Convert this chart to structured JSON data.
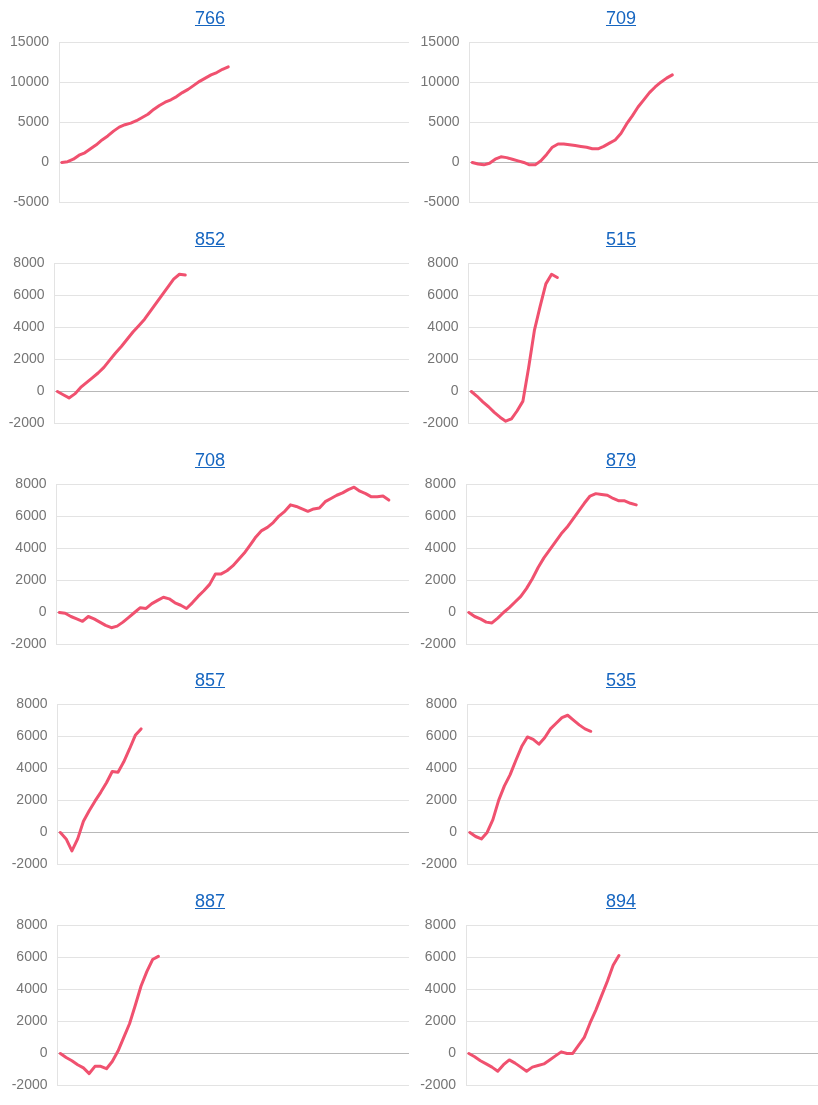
{
  "chart_data": [
    {
      "type": "line",
      "title": "766",
      "categories": [
        null,
        null,
        null,
        null,
        null,
        null,
        null,
        null,
        null,
        null,
        null,
        null,
        null,
        null,
        null,
        null,
        null,
        null,
        null,
        null,
        null,
        null,
        null,
        null,
        null,
        null,
        null,
        null,
        null,
        null,
        null,
        null,
        null,
        null,
        null,
        null,
        null,
        null,
        null,
        null,
        null,
        null,
        null,
        null,
        null,
        null,
        null,
        null,
        null,
        null,
        null,
        null,
        null,
        null,
        null,
        null,
        null,
        null,
        null,
        null,
        null
      ],
      "values": [
        0,
        100,
        400,
        900,
        1200,
        1700,
        2200,
        2800,
        3300,
        3900,
        4400,
        4700,
        4900,
        5200,
        5600,
        6000,
        6600,
        7100,
        7500,
        7800,
        8200,
        8700,
        9100,
        9600,
        10100,
        10500,
        10900,
        11200,
        11600,
        11900,
        null,
        null,
        null,
        null,
        null,
        null,
        null,
        null,
        null,
        null,
        null,
        null,
        null,
        null,
        null,
        null,
        null,
        null,
        null,
        null,
        null,
        null,
        null,
        null,
        null,
        null,
        null,
        null,
        null,
        null,
        null
      ],
      "color": "#f0516f",
      "ylim": [
        -5000,
        15000
      ],
      "yticks": [
        -5000,
        0,
        5000,
        10000,
        15000
      ],
      "grid": "y",
      "tick_labels": "y"
    },
    {
      "type": "line",
      "title": "709",
      "categories": [
        null,
        null,
        null,
        null,
        null,
        null,
        null,
        null,
        null,
        null,
        null,
        null,
        null,
        null,
        null,
        null,
        null,
        null,
        null,
        null,
        null,
        null,
        null,
        null,
        null,
        null,
        null,
        null,
        null,
        null,
        null,
        null,
        null,
        null,
        null,
        null,
        null,
        null,
        null,
        null,
        null,
        null,
        null,
        null,
        null,
        null,
        null,
        null,
        null,
        null,
        null,
        null,
        null,
        null,
        null,
        null,
        null,
        null,
        null,
        null,
        null
      ],
      "values": [
        0,
        -200,
        -300,
        -100,
        400,
        700,
        600,
        400,
        200,
        0,
        -300,
        -300,
        200,
        1000,
        1900,
        2300,
        2300,
        2200,
        2100,
        2000,
        1900,
        1700,
        1700,
        2000,
        2400,
        2800,
        3600,
        4800,
        5800,
        6900,
        7800,
        8700,
        9400,
        10000,
        10500,
        10900,
        null,
        null,
        null,
        null,
        null,
        null,
        null,
        null,
        null,
        null,
        null,
        null,
        null,
        null,
        null,
        null,
        null,
        null,
        null,
        null,
        null,
        null,
        null,
        null,
        null
      ],
      "color": "#f0516f",
      "ylim": [
        -5000,
        15000
      ],
      "yticks": [
        -5000,
        0,
        5000,
        10000,
        15000
      ],
      "grid": "y",
      "tick_labels": "y"
    },
    {
      "type": "line",
      "title": "852",
      "categories": [
        null,
        null,
        null,
        null,
        null,
        null,
        null,
        null,
        null,
        null,
        null,
        null,
        null,
        null,
        null,
        null,
        null,
        null,
        null,
        null,
        null,
        null,
        null,
        null,
        null,
        null,
        null,
        null,
        null,
        null,
        null,
        null,
        null,
        null,
        null,
        null,
        null,
        null,
        null,
        null,
        null,
        null,
        null,
        null,
        null,
        null,
        null,
        null,
        null,
        null,
        null,
        null,
        null,
        null,
        null,
        null,
        null,
        null,
        null,
        null,
        null
      ],
      "values": [
        0,
        -200,
        -400,
        -150,
        250,
        550,
        850,
        1150,
        1500,
        1950,
        2400,
        2800,
        3250,
        3700,
        4100,
        4500,
        5000,
        5500,
        6000,
        6500,
        7000,
        7300,
        7250,
        null,
        null,
        null,
        null,
        null,
        null,
        null,
        null,
        null,
        null,
        null,
        null,
        null,
        null,
        null,
        null,
        null,
        null,
        null,
        null,
        null,
        null,
        null,
        null,
        null,
        null,
        null,
        null,
        null,
        null,
        null,
        null,
        null,
        null,
        null,
        null,
        null,
        null
      ],
      "color": "#f0516f",
      "ylim": [
        -2000,
        8000
      ],
      "yticks": [
        -2000,
        0,
        2000,
        4000,
        6000,
        8000
      ],
      "grid": "y",
      "tick_labels": "y"
    },
    {
      "type": "line",
      "title": "515",
      "categories": [
        null,
        null,
        null,
        null,
        null,
        null,
        null,
        null,
        null,
        null,
        null,
        null,
        null,
        null,
        null,
        null,
        null,
        null,
        null,
        null,
        null,
        null,
        null,
        null,
        null,
        null,
        null,
        null,
        null,
        null,
        null,
        null,
        null,
        null,
        null,
        null,
        null,
        null,
        null,
        null,
        null,
        null,
        null,
        null,
        null,
        null,
        null,
        null,
        null,
        null,
        null,
        null,
        null,
        null,
        null,
        null,
        null,
        null,
        null,
        null,
        null
      ],
      "values": [
        0,
        -300,
        -650,
        -950,
        -1300,
        -1600,
        -1850,
        -1700,
        -1200,
        -600,
        1500,
        3800,
        5300,
        6700,
        7300,
        7100,
        null,
        null,
        null,
        null,
        null,
        null,
        null,
        null,
        null,
        null,
        null,
        null,
        null,
        null,
        null,
        null,
        null,
        null,
        null,
        null,
        null,
        null,
        null,
        null,
        null,
        null,
        null,
        null,
        null,
        null,
        null,
        null,
        null,
        null,
        null,
        null,
        null,
        null,
        null,
        null,
        null,
        null,
        null,
        null,
        null
      ],
      "color": "#f0516f",
      "ylim": [
        -2000,
        8000
      ],
      "yticks": [
        -2000,
        0,
        2000,
        4000,
        6000,
        8000
      ],
      "grid": "y",
      "tick_labels": "y"
    },
    {
      "type": "line",
      "title": "708",
      "categories": [
        null,
        null,
        null,
        null,
        null,
        null,
        null,
        null,
        null,
        null,
        null,
        null,
        null,
        null,
        null,
        null,
        null,
        null,
        null,
        null,
        null,
        null,
        null,
        null,
        null,
        null,
        null,
        null,
        null,
        null,
        null,
        null,
        null,
        null,
        null,
        null,
        null,
        null,
        null,
        null,
        null,
        null,
        null,
        null,
        null,
        null,
        null,
        null,
        null,
        null,
        null,
        null,
        null,
        null,
        null,
        null,
        null,
        null,
        null,
        null,
        null
      ],
      "values": [
        0,
        -50,
        -250,
        -400,
        -550,
        -250,
        -400,
        -600,
        -800,
        -950,
        -850,
        -600,
        -300,
        0,
        300,
        250,
        550,
        750,
        950,
        850,
        600,
        450,
        250,
        600,
        1000,
        1350,
        1750,
        2400,
        2400,
        2600,
        2900,
        3300,
        3700,
        4200,
        4700,
        5100,
        5300,
        5600,
        6000,
        6300,
        6700,
        6600,
        6450,
        6300,
        6450,
        6500,
        6900,
        7100,
        7300,
        7450,
        7650,
        7800,
        7550,
        7400,
        7200,
        7200,
        7250,
        7000,
        null,
        null,
        null
      ],
      "color": "#f0516f",
      "ylim": [
        -2000,
        8000
      ],
      "yticks": [
        -2000,
        0,
        2000,
        4000,
        6000,
        8000
      ],
      "grid": "y",
      "tick_labels": "y"
    },
    {
      "type": "line",
      "title": "879",
      "categories": [
        null,
        null,
        null,
        null,
        null,
        null,
        null,
        null,
        null,
        null,
        null,
        null,
        null,
        null,
        null,
        null,
        null,
        null,
        null,
        null,
        null,
        null,
        null,
        null,
        null,
        null,
        null,
        null,
        null,
        null,
        null,
        null,
        null,
        null,
        null,
        null,
        null,
        null,
        null,
        null,
        null,
        null,
        null,
        null,
        null,
        null,
        null,
        null,
        null,
        null,
        null,
        null,
        null,
        null,
        null,
        null,
        null,
        null,
        null,
        null,
        null
      ],
      "values": [
        0,
        -250,
        -400,
        -600,
        -650,
        -350,
        0,
        300,
        650,
        1000,
        1500,
        2100,
        2800,
        3400,
        3900,
        4400,
        4900,
        5300,
        5800,
        6300,
        6800,
        7250,
        7400,
        7350,
        7300,
        7100,
        6950,
        6950,
        6800,
        6700,
        null,
        null,
        null,
        null,
        null,
        null,
        null,
        null,
        null,
        null,
        null,
        null,
        null,
        null,
        null,
        null,
        null,
        null,
        null,
        null,
        null,
        null,
        null,
        null,
        null,
        null,
        null,
        null,
        null,
        null,
        null
      ],
      "color": "#f0516f",
      "ylim": [
        -2000,
        8000
      ],
      "yticks": [
        -2000,
        0,
        2000,
        4000,
        6000,
        8000
      ],
      "grid": "y",
      "tick_labels": "y"
    },
    {
      "type": "line",
      "title": "857",
      "categories": [
        null,
        null,
        null,
        null,
        null,
        null,
        null,
        null,
        null,
        null,
        null,
        null,
        null,
        null,
        null,
        null,
        null,
        null,
        null,
        null,
        null,
        null,
        null,
        null,
        null,
        null,
        null,
        null,
        null,
        null,
        null,
        null,
        null,
        null,
        null,
        null,
        null,
        null,
        null,
        null,
        null,
        null,
        null,
        null,
        null,
        null,
        null,
        null,
        null,
        null,
        null,
        null,
        null,
        null,
        null,
        null,
        null,
        null,
        null,
        null,
        null
      ],
      "values": [
        0,
        -400,
        -1150,
        -400,
        700,
        1350,
        1950,
        2500,
        3100,
        3800,
        3750,
        4400,
        5200,
        6050,
        6450,
        null,
        null,
        null,
        null,
        null,
        null,
        null,
        null,
        null,
        null,
        null,
        null,
        null,
        null,
        null,
        null,
        null,
        null,
        null,
        null,
        null,
        null,
        null,
        null,
        null,
        null,
        null,
        null,
        null,
        null,
        null,
        null,
        null,
        null,
        null,
        null,
        null,
        null,
        null,
        null,
        null,
        null,
        null,
        null,
        null,
        null
      ],
      "color": "#f0516f",
      "ylim": [
        -2000,
        8000
      ],
      "yticks": [
        -2000,
        0,
        2000,
        4000,
        6000,
        8000
      ],
      "grid": "y",
      "tick_labels": "y"
    },
    {
      "type": "line",
      "title": "535",
      "categories": [
        null,
        null,
        null,
        null,
        null,
        null,
        null,
        null,
        null,
        null,
        null,
        null,
        null,
        null,
        null,
        null,
        null,
        null,
        null,
        null,
        null,
        null,
        null,
        null,
        null,
        null,
        null,
        null,
        null,
        null,
        null,
        null,
        null,
        null,
        null,
        null,
        null,
        null,
        null,
        null,
        null,
        null,
        null,
        null,
        null,
        null,
        null,
        null,
        null,
        null,
        null,
        null,
        null,
        null,
        null,
        null,
        null,
        null,
        null,
        null,
        null
      ],
      "values": [
        0,
        -250,
        -400,
        0,
        800,
        2000,
        2900,
        3600,
        4500,
        5350,
        5950,
        5800,
        5500,
        5900,
        6450,
        6800,
        7150,
        7300,
        7000,
        6700,
        6450,
        6300,
        null,
        null,
        null,
        null,
        null,
        null,
        null,
        null,
        null,
        null,
        null,
        null,
        null,
        null,
        null,
        null,
        null,
        null,
        null,
        null,
        null,
        null,
        null,
        null,
        null,
        null,
        null,
        null,
        null,
        null,
        null,
        null,
        null,
        null,
        null,
        null,
        null,
        null,
        null
      ],
      "color": "#f0516f",
      "ylim": [
        -2000,
        8000
      ],
      "yticks": [
        -2000,
        0,
        2000,
        4000,
        6000,
        8000
      ],
      "grid": "y",
      "tick_labels": "y"
    },
    {
      "type": "line",
      "title": "887",
      "categories": [
        null,
        null,
        null,
        null,
        null,
        null,
        null,
        null,
        null,
        null,
        null,
        null,
        null,
        null,
        null,
        null,
        null,
        null,
        null,
        null,
        null,
        null,
        null,
        null,
        null,
        null,
        null,
        null,
        null,
        null,
        null,
        null,
        null,
        null,
        null,
        null,
        null,
        null,
        null,
        null,
        null,
        null,
        null,
        null,
        null,
        null,
        null,
        null,
        null,
        null,
        null,
        null,
        null,
        null,
        null,
        null,
        null,
        null,
        null,
        null,
        null
      ],
      "values": [
        0,
        -250,
        -450,
        -700,
        -900,
        -1250,
        -800,
        -800,
        -950,
        -500,
        150,
        1000,
        1850,
        3000,
        4200,
        5100,
        5850,
        6050,
        null,
        null,
        null,
        null,
        null,
        null,
        null,
        null,
        null,
        null,
        null,
        null,
        null,
        null,
        null,
        null,
        null,
        null,
        null,
        null,
        null,
        null,
        null,
        null,
        null,
        null,
        null,
        null,
        null,
        null,
        null,
        null,
        null,
        null,
        null,
        null,
        null,
        null,
        null,
        null,
        null,
        null,
        null
      ],
      "color": "#f0516f",
      "ylim": [
        -2000,
        8000
      ],
      "yticks": [
        -2000,
        0,
        2000,
        4000,
        6000,
        8000
      ],
      "grid": "y",
      "tick_labels": "y"
    },
    {
      "type": "line",
      "title": "894",
      "categories": [
        null,
        null,
        null,
        null,
        null,
        null,
        null,
        null,
        null,
        null,
        null,
        null,
        null,
        null,
        null,
        null,
        null,
        null,
        null,
        null,
        null,
        null,
        null,
        null,
        null,
        null,
        null,
        null,
        null,
        null,
        null,
        null,
        null,
        null,
        null,
        null,
        null,
        null,
        null,
        null,
        null,
        null,
        null,
        null,
        null,
        null,
        null,
        null,
        null,
        null,
        null,
        null,
        null,
        null,
        null,
        null,
        null,
        null,
        null,
        null,
        null
      ],
      "values": [
        0,
        -200,
        -450,
        -650,
        -850,
        -1100,
        -700,
        -400,
        -600,
        -850,
        -1100,
        -850,
        -750,
        -650,
        -400,
        -150,
        100,
        0,
        0,
        500,
        1000,
        1900,
        2700,
        3600,
        4500,
        5500,
        6100,
        null,
        null,
        null,
        null,
        null,
        null,
        null,
        null,
        null,
        null,
        null,
        null,
        null,
        null,
        null,
        null,
        null,
        null,
        null,
        null,
        null,
        null,
        null,
        null,
        null,
        null,
        null,
        null,
        null,
        null,
        null,
        null,
        null,
        null
      ],
      "color": "#f0516f",
      "ylim": [
        -2000,
        8000
      ],
      "yticks": [
        -2000,
        0,
        2000,
        4000,
        6000,
        8000
      ],
      "grid": "y",
      "tick_labels": "y"
    }
  ]
}
